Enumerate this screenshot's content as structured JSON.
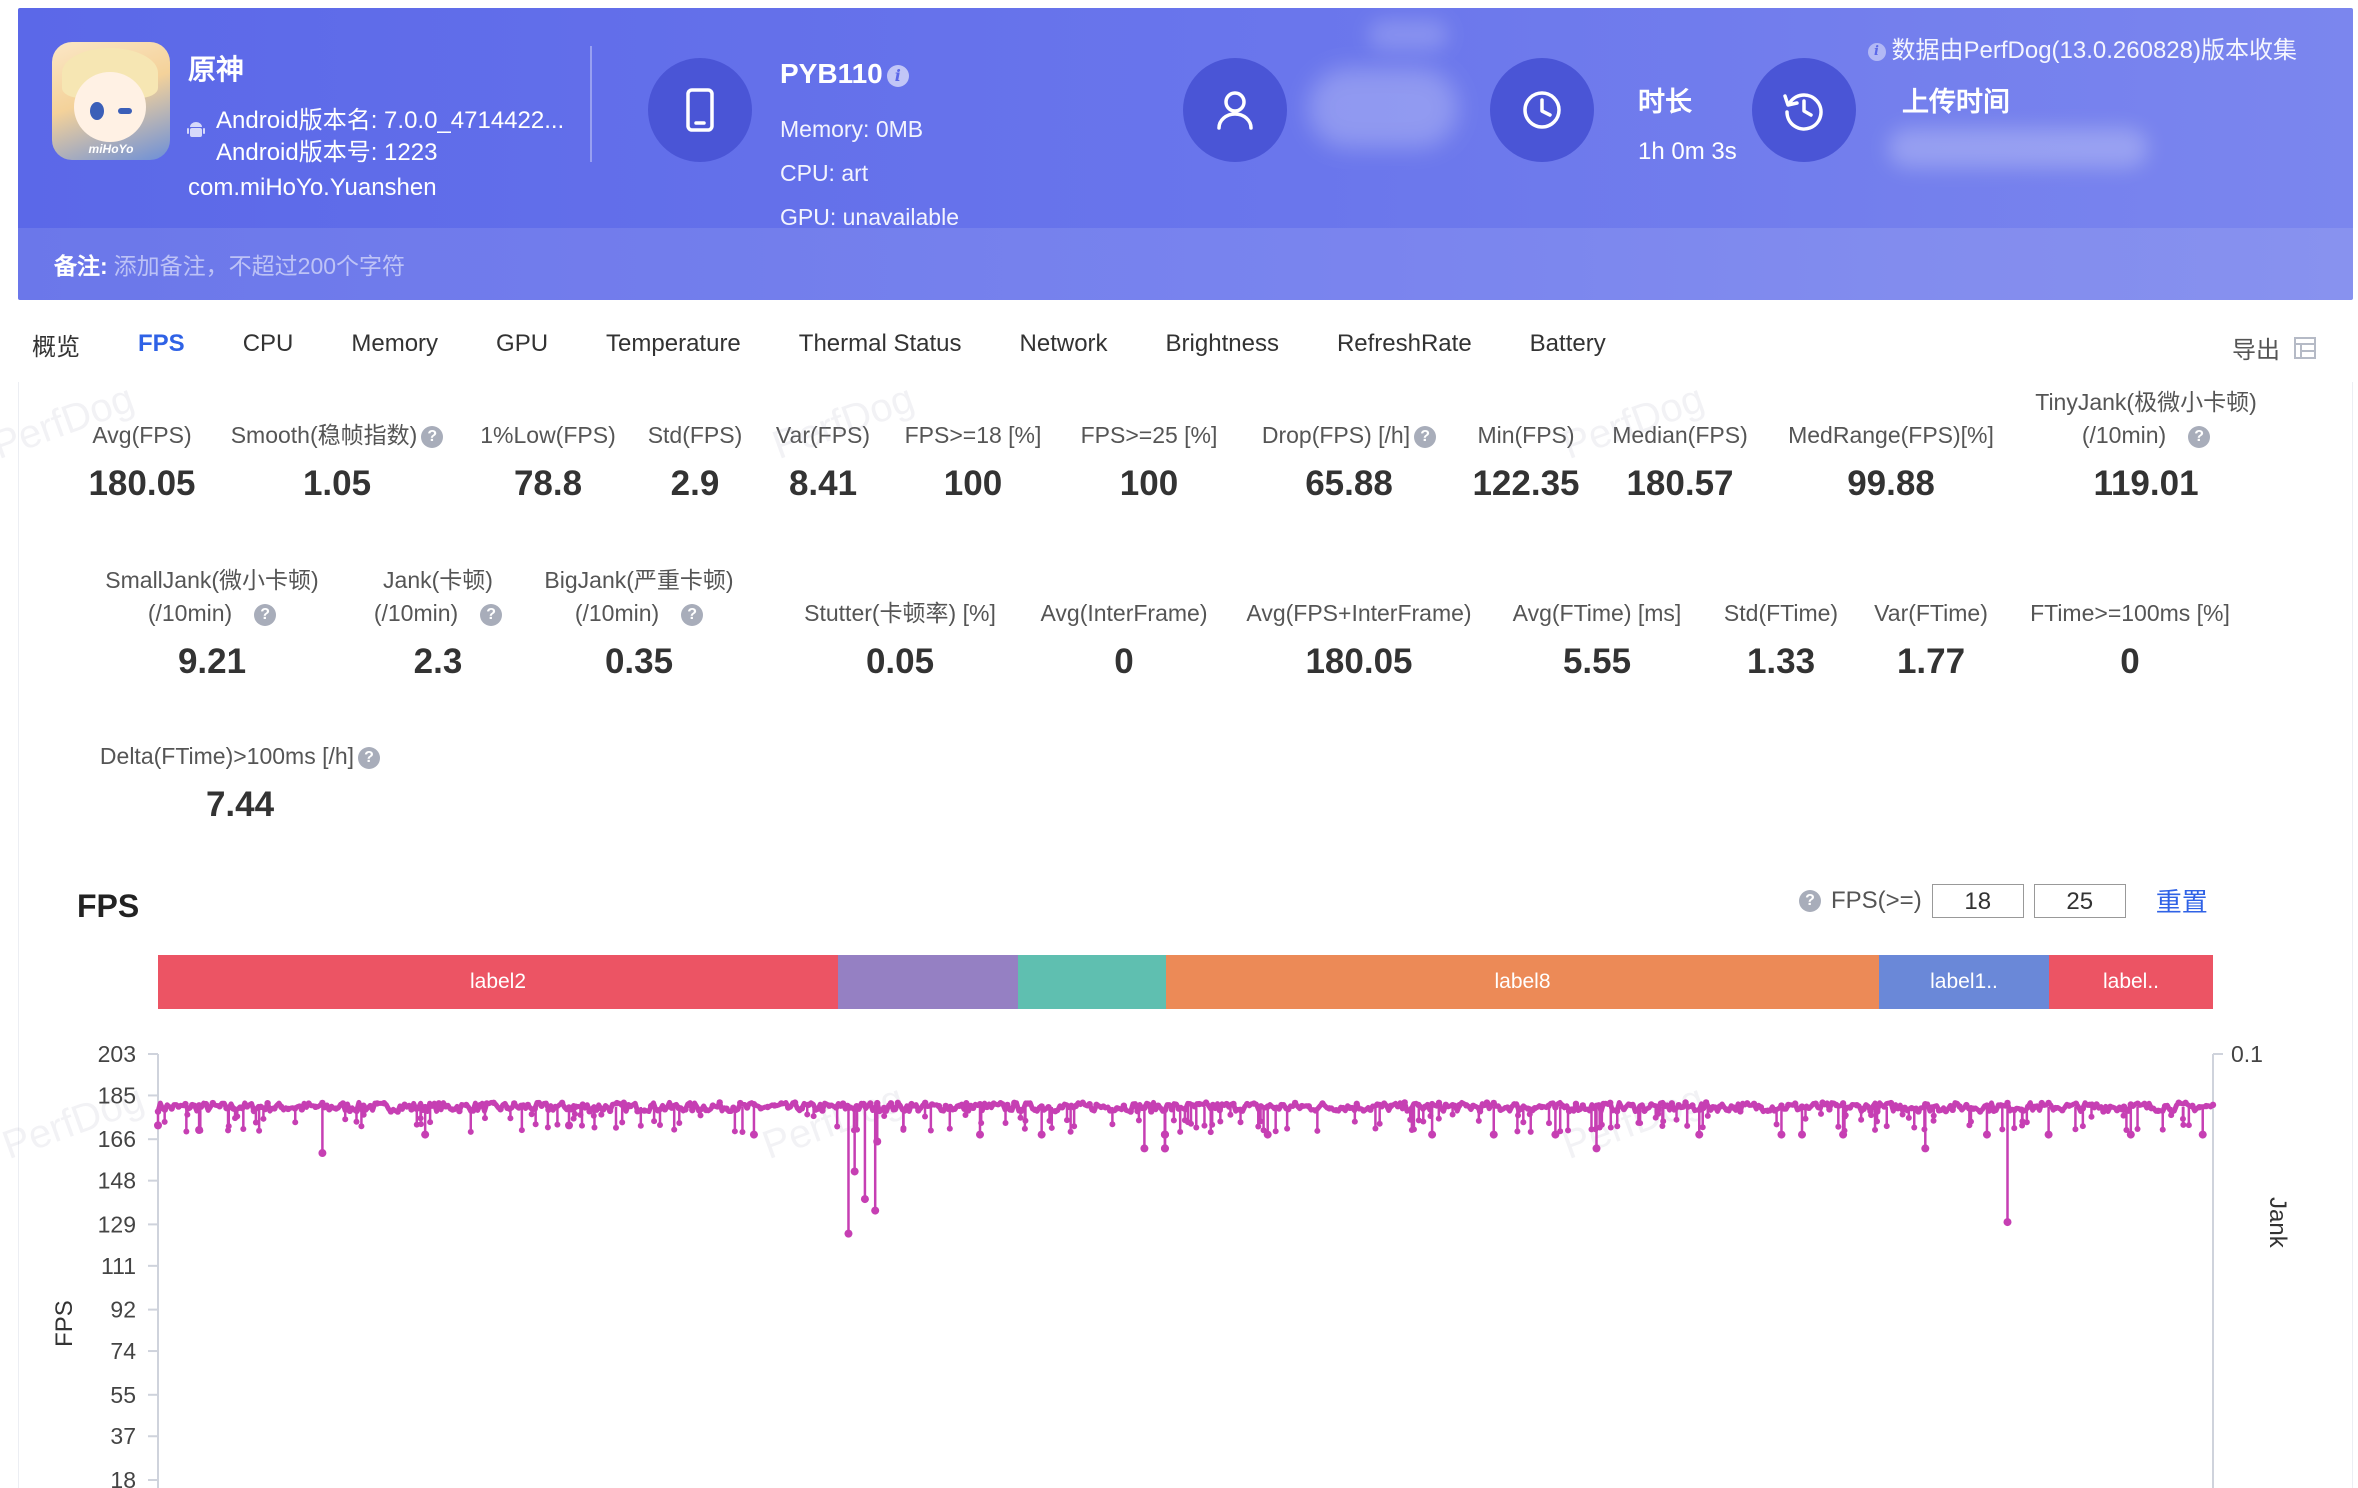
{
  "header": {
    "app_name": "原神",
    "android_version_name": "Android版本名: 7.0.0_4714422...",
    "android_version_code": "Android版本号: 1223",
    "package": "com.miHoYo.Yuanshen",
    "app_icon_brand": "miHoYo",
    "device": {
      "name": "PYB110",
      "memory": "Memory: 0MB",
      "cpu": "CPU: art",
      "gpu": "GPU: unavailable"
    },
    "duration_title": "时长",
    "duration_value": "1h 0m 3s",
    "upload_title": "上传时间",
    "collect_note": "数据由PerfDog(13.0.260828)版本收集",
    "note_label": "备注:",
    "note_placeholder": "添加备注，不超过200个字符"
  },
  "tabs": [
    "概览",
    "FPS",
    "CPU",
    "Memory",
    "GPU",
    "Temperature",
    "Thermal Status",
    "Network",
    "Brightness",
    "RefreshRate",
    "Battery"
  ],
  "active_tab": "FPS",
  "export_label": "导出",
  "metrics_row1": [
    {
      "label": "Avg(FPS)",
      "value": "180.05"
    },
    {
      "label": "Smooth(稳帧指数)",
      "value": "1.05",
      "help": true
    },
    {
      "label": "1%Low(FPS)",
      "value": "78.8"
    },
    {
      "label": "Std(FPS)",
      "value": "2.9"
    },
    {
      "label": "Var(FPS)",
      "value": "8.41"
    },
    {
      "label": "FPS>=18 [%]",
      "value": "100"
    },
    {
      "label": "FPS>=25 [%]",
      "value": "100"
    },
    {
      "label": "Drop(FPS) [/h]",
      "value": "65.88",
      "help": true
    },
    {
      "label": "Min(FPS)",
      "value": "122.35"
    },
    {
      "label": "Median(FPS)",
      "value": "180.57"
    },
    {
      "label": "MedRange(FPS)[%]",
      "value": "99.88"
    },
    {
      "label": "TinyJank(极微小卡顿)",
      "label2": "(/10min)",
      "value": "119.01",
      "help": true
    }
  ],
  "metrics_row2": [
    {
      "label": "SmallJank(微小卡顿)",
      "label2": "(/10min)",
      "value": "9.21",
      "help": true
    },
    {
      "label": "Jank(卡顿)",
      "label2": "(/10min)",
      "value": "2.3",
      "help": true
    },
    {
      "label": "BigJank(严重卡顿)",
      "label2": "(/10min)",
      "value": "0.35",
      "help": true
    },
    {
      "label": "Stutter(卡顿率) [%]",
      "value": "0.05"
    },
    {
      "label": "Avg(InterFrame)",
      "value": "0"
    },
    {
      "label": "Avg(FPS+InterFrame)",
      "value": "180.05"
    },
    {
      "label": "Avg(FTime) [ms]",
      "value": "5.55"
    },
    {
      "label": "Std(FTime)",
      "value": "1.33"
    },
    {
      "label": "Var(FTime)",
      "value": "1.77"
    },
    {
      "label": "FTime>=100ms [%]",
      "value": "0"
    }
  ],
  "metrics_row3": [
    {
      "label": "Delta(FTime)>100ms [/h]",
      "value": "7.44",
      "help": true
    }
  ],
  "watermark": "PerfDog",
  "chart_filter": {
    "label": "FPS(>=)",
    "threshold1": "18",
    "threshold2": "25",
    "reset_label": "重置"
  },
  "label_segments": [
    {
      "text": "label2",
      "color": "#ec5464"
    },
    {
      "text": "",
      "color": "#9580c3"
    },
    {
      "text": "",
      "color": "#5fbfb0"
    },
    {
      "text": "label8",
      "color": "#ec8a57"
    },
    {
      "text": "label1..",
      "color": "#6a88d8"
    },
    {
      "text": "label..",
      "color": "#ec5464"
    }
  ],
  "chart_data": {
    "type": "line",
    "title": "FPS",
    "ylabel": "FPS",
    "y2label": "Jank",
    "yticks": [
      203,
      185,
      166,
      148,
      129,
      111,
      92,
      74,
      55,
      37,
      18
    ],
    "y2ticks": [
      0.1
    ],
    "ylim": [
      0,
      203
    ],
    "series_color": "#c63fb3",
    "series": [
      {
        "baseline": 180,
        "dips": [
          {
            "pos": 0.0,
            "value": 172
          },
          {
            "pos": 0.02,
            "value": 170
          },
          {
            "pos": 0.08,
            "value": 160
          },
          {
            "pos": 0.13,
            "value": 168
          },
          {
            "pos": 0.2,
            "value": 172
          },
          {
            "pos": 0.29,
            "value": 168
          },
          {
            "pos": 0.336,
            "value": 125
          },
          {
            "pos": 0.339,
            "value": 152
          },
          {
            "pos": 0.344,
            "value": 140
          },
          {
            "pos": 0.35,
            "value": 165
          },
          {
            "pos": 0.349,
            "value": 135
          },
          {
            "pos": 0.4,
            "value": 168
          },
          {
            "pos": 0.43,
            "value": 168
          },
          {
            "pos": 0.48,
            "value": 162
          },
          {
            "pos": 0.49,
            "value": 168
          },
          {
            "pos": 0.49,
            "value": 168
          },
          {
            "pos": 0.49,
            "value": 168
          },
          {
            "pos": 0.49,
            "value": 168
          },
          {
            "pos": 0.49,
            "value": 162
          },
          {
            "pos": 0.49,
            "value": 162
          },
          {
            "pos": 0.54,
            "value": 168
          },
          {
            "pos": 0.62,
            "value": 168
          },
          {
            "pos": 0.65,
            "value": 168
          },
          {
            "pos": 0.68,
            "value": 168
          },
          {
            "pos": 0.7,
            "value": 162
          },
          {
            "pos": 0.75,
            "value": 168
          },
          {
            "pos": 0.79,
            "value": 168
          },
          {
            "pos": 0.8,
            "value": 168
          },
          {
            "pos": 0.82,
            "value": 168
          },
          {
            "pos": 0.86,
            "value": 162
          },
          {
            "pos": 0.89,
            "value": 168
          },
          {
            "pos": 0.9,
            "value": 130
          },
          {
            "pos": 0.92,
            "value": 168
          },
          {
            "pos": 0.96,
            "value": 168
          },
          {
            "pos": 0.995,
            "value": 168
          }
        ]
      }
    ]
  }
}
